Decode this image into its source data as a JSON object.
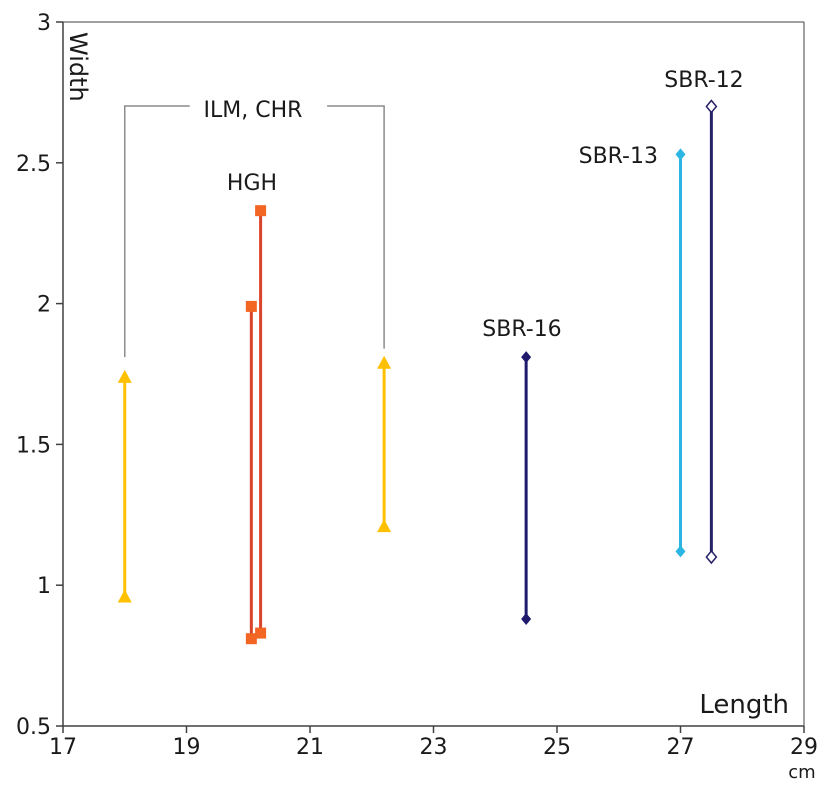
{
  "chart_data": {
    "type": "line",
    "title": "",
    "xlabel": "Length",
    "ylabel": "Width",
    "x_unit": "cm",
    "xlim": [
      17,
      29
    ],
    "ylim": [
      0.5,
      3
    ],
    "x_ticks": [
      "17",
      "19",
      "21",
      "23",
      "25",
      "27",
      "29"
    ],
    "y_ticks": [
      "0.5",
      "1",
      "1.5",
      "2",
      "2.5",
      "3"
    ],
    "grid": false,
    "series": [
      {
        "name": "ILM, CHR",
        "color": "#FFC000",
        "marker": "triangle",
        "points": [
          {
            "x": 18.0,
            "y": 0.96
          },
          {
            "x": 18.0,
            "y": 1.74
          }
        ]
      },
      {
        "name": "ILM, CHR",
        "color": "#FFC000",
        "marker": "triangle",
        "points": [
          {
            "x": 22.2,
            "y": 1.21
          },
          {
            "x": 22.2,
            "y": 1.79
          }
        ]
      },
      {
        "name": "HGH",
        "color": "#D9442A",
        "marker_color": "#F26522",
        "marker": "square",
        "points": [
          {
            "x": 20.05,
            "y": 0.81
          },
          {
            "x": 20.05,
            "y": 1.99
          }
        ]
      },
      {
        "name": "HGH",
        "color": "#D9442A",
        "marker_color": "#F26522",
        "marker": "square",
        "points": [
          {
            "x": 20.2,
            "y": 0.83
          },
          {
            "x": 20.2,
            "y": 2.33
          }
        ]
      },
      {
        "name": "SBR-16",
        "color": "#1F1A6B",
        "marker": "diamond",
        "points": [
          {
            "x": 24.5,
            "y": 0.88
          },
          {
            "x": 24.5,
            "y": 1.81
          }
        ]
      },
      {
        "name": "SBR-13",
        "color": "#2BB5E3",
        "marker": "diamond",
        "points": [
          {
            "x": 27.0,
            "y": 1.12
          },
          {
            "x": 27.0,
            "y": 2.53
          }
        ]
      },
      {
        "name": "SBR-12",
        "color": "#262266",
        "marker": "diamond-open",
        "points": [
          {
            "x": 27.5,
            "y": 1.1
          },
          {
            "x": 27.5,
            "y": 2.7
          }
        ]
      }
    ],
    "annotations": {
      "bracket_label": "ILM, CHR",
      "bracket_color": "#8C8C8C",
      "hgh_label": "HGH",
      "sbr16_label": "SBR-16",
      "sbr13_label": "SBR-13",
      "sbr12_label": "SBR-12"
    }
  }
}
